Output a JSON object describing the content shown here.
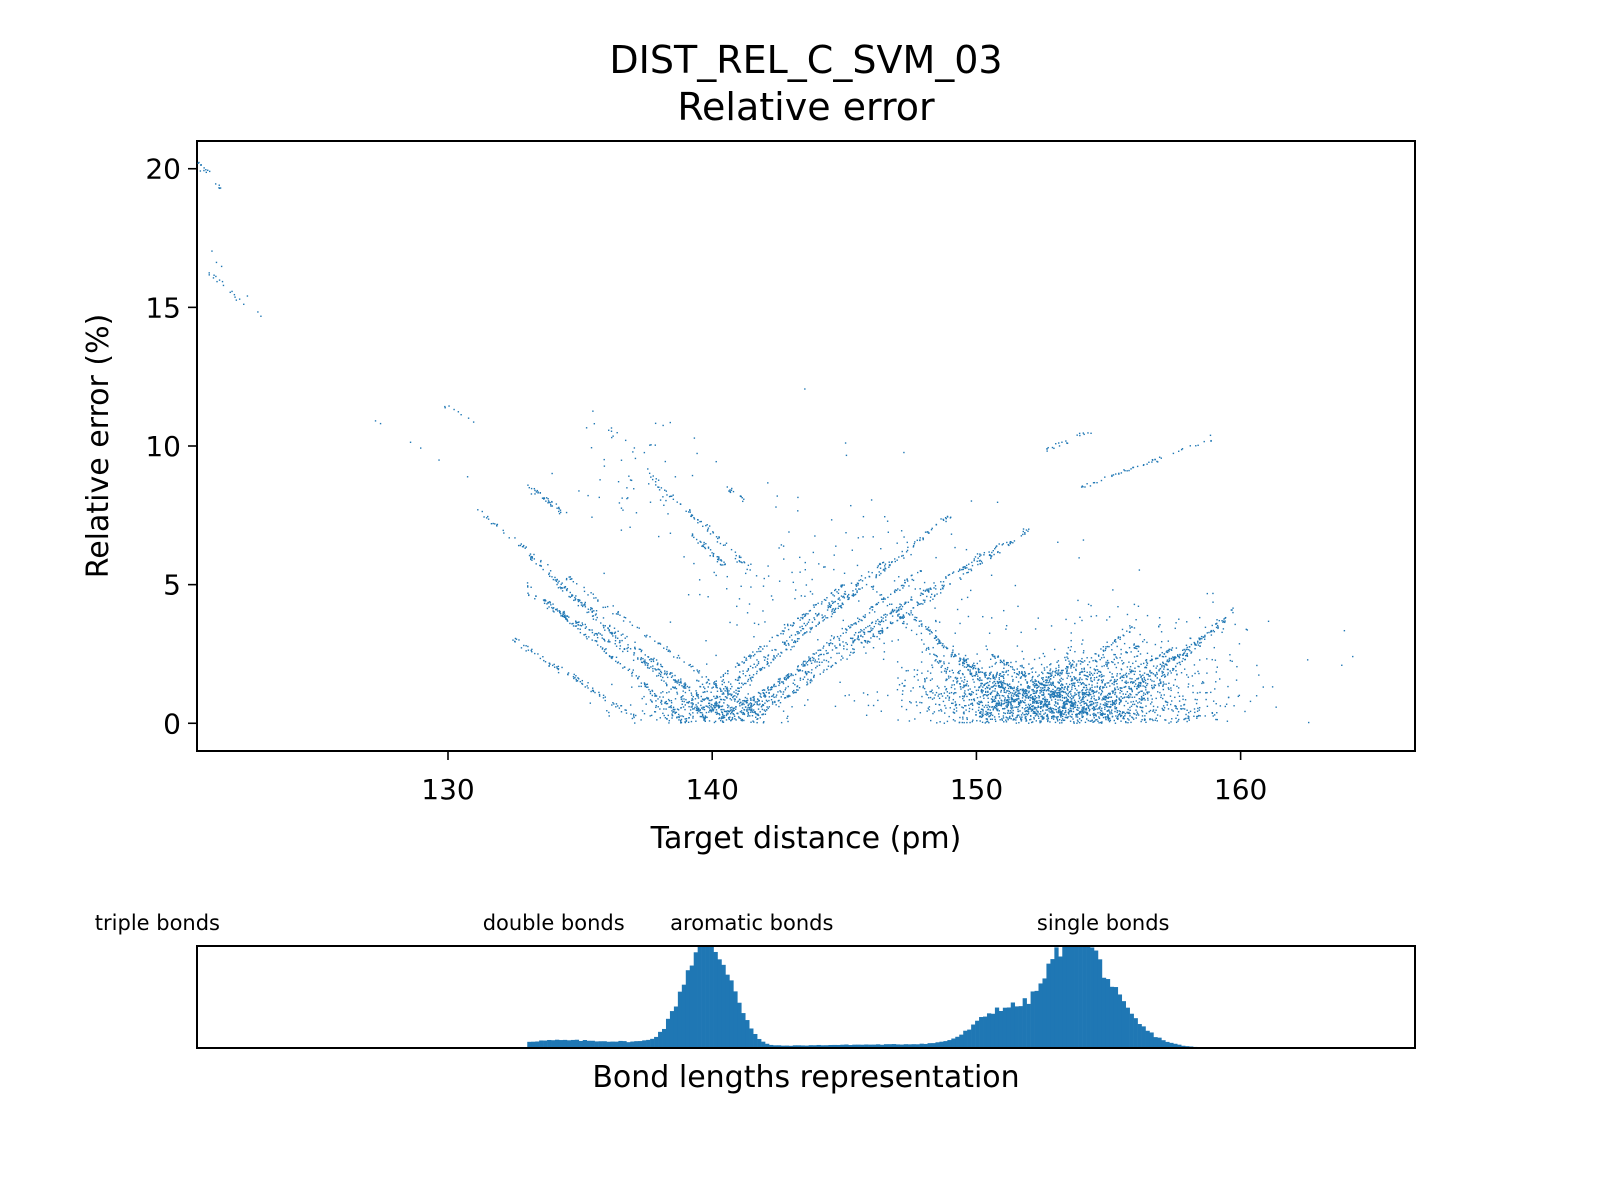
{
  "figure": {
    "title_line1": "DIST_REL_C_SVM_03",
    "title_line2": "Relative error"
  },
  "chart_data": [
    {
      "type": "scatter",
      "title": "DIST_REL_C_SVM_03 Relative error",
      "xlabel": "Target distance (pm)",
      "ylabel": "Relative error (%)",
      "xlim": [
        120.5,
        166.6
      ],
      "ylim": [
        -1.0,
        21.0
      ],
      "xticks": [
        130,
        140,
        150,
        160
      ],
      "yticks": [
        0,
        5,
        10,
        15,
        20
      ],
      "grid": false,
      "color": "#1f77b4",
      "segments": [
        {
          "x": [
            120.5,
            121.4
          ],
          "y": [
            20.3,
            19.3
          ],
          "n": 18
        },
        {
          "x": [
            120.8,
            122.4
          ],
          "y": [
            16.4,
            15.0
          ],
          "n": 16
        },
        {
          "x": [
            120.6,
            123.8
          ],
          "y": [
            17.5,
            13.7
          ],
          "n": 6
        },
        {
          "x": [
            126.0,
            131.0
          ],
          "y": [
            11.6,
            8.8
          ],
          "n": 6
        },
        {
          "x": [
            129.8,
            131.0
          ],
          "y": [
            11.5,
            10.9
          ],
          "n": 8
        },
        {
          "x": [
            133.0,
            134.5
          ],
          "y": [
            8.6,
            7.5
          ],
          "n": 40
        },
        {
          "x": [
            133.0,
            139.8
          ],
          "y": [
            6.1,
            0.1
          ],
          "n": 140
        },
        {
          "x": [
            133.0,
            139.0
          ],
          "y": [
            5.0,
            0.1
          ],
          "n": 140
        },
        {
          "x": [
            133.0,
            141.2
          ],
          "y": [
            4.7,
            0.1
          ],
          "n": 140
        },
        {
          "x": [
            134.0,
            140.5
          ],
          "y": [
            5.2,
            0.1
          ],
          "n": 120
        },
        {
          "x": [
            132.5,
            137.3
          ],
          "y": [
            3.0,
            0.1
          ],
          "n": 90
        },
        {
          "x": [
            134.5,
            142.0
          ],
          "y": [
            5.3,
            0.1
          ],
          "n": 110
        },
        {
          "x": [
            131.0,
            134.0
          ],
          "y": [
            7.8,
            5.5
          ],
          "n": 30
        },
        {
          "x": [
            139.5,
            149.0
          ],
          "y": [
            0.1,
            7.5
          ],
          "n": 200
        },
        {
          "x": [
            140.2,
            151.0
          ],
          "y": [
            0.1,
            6.5
          ],
          "n": 200
        },
        {
          "x": [
            140.8,
            148.0
          ],
          "y": [
            0.1,
            5.6
          ],
          "n": 160
        },
        {
          "x": [
            141.5,
            152.0
          ],
          "y": [
            0.1,
            7.0
          ],
          "n": 180
        },
        {
          "x": [
            139.0,
            146.5
          ],
          "y": [
            0.1,
            5.8
          ],
          "n": 140
        },
        {
          "x": [
            138.2,
            145.0
          ],
          "y": [
            0.1,
            5.0
          ],
          "n": 120
        },
        {
          "x": [
            141.0,
            147.0
          ],
          "y": [
            0.1,
            4.0
          ],
          "n": 90
        },
        {
          "x": [
            137.0,
            141.5
          ],
          "y": [
            9.5,
            5.5
          ],
          "n": 70
        },
        {
          "x": [
            139.0,
            140.5
          ],
          "y": [
            7.0,
            5.7
          ],
          "n": 40
        },
        {
          "x": [
            140.5,
            141.2
          ],
          "y": [
            8.5,
            8.1
          ],
          "n": 14
        },
        {
          "x": [
            146.0,
            150.5
          ],
          "y": [
            5.0,
            0.2
          ],
          "n": 80
        },
        {
          "x": [
            147.5,
            151.5
          ],
          "y": [
            4.0,
            0.2
          ],
          "n": 80
        },
        {
          "x": [
            148.5,
            152.5
          ],
          "y": [
            3.0,
            0.2
          ],
          "n": 90
        },
        {
          "x": [
            149.5,
            153.5
          ],
          "y": [
            2.2,
            0.2
          ],
          "n": 90
        },
        {
          "x": [
            150.5,
            154.5
          ],
          "y": [
            2.5,
            0.2
          ],
          "n": 80
        },
        {
          "x": [
            150.0,
            155.0
          ],
          "y": [
            0.2,
            2.8
          ],
          "n": 100
        },
        {
          "x": [
            151.5,
            156.5
          ],
          "y": [
            0.2,
            3.0
          ],
          "n": 100
        },
        {
          "x": [
            152.5,
            157.5
          ],
          "y": [
            0.2,
            2.7
          ],
          "n": 100
        },
        {
          "x": [
            153.5,
            158.5
          ],
          "y": [
            0.2,
            2.9
          ],
          "n": 100
        },
        {
          "x": [
            154.5,
            159.5
          ],
          "y": [
            0.2,
            3.8
          ],
          "n": 100
        },
        {
          "x": [
            155.5,
            160.0
          ],
          "y": [
            0.2,
            4.3
          ],
          "n": 80
        },
        {
          "x": [
            152.0,
            156.0
          ],
          "y": [
            0.2,
            3.6
          ],
          "n": 60
        },
        {
          "x": [
            154.0,
            159.0
          ],
          "y": [
            8.5,
            10.3
          ],
          "n": 50
        },
        {
          "x": [
            152.5,
            154.5
          ],
          "y": [
            9.8,
            10.6
          ],
          "n": 20
        }
      ],
      "clusters": [
        {
          "cx": 140.0,
          "cy": 0.6,
          "sx": 1.5,
          "sy": 0.5,
          "n": 300
        },
        {
          "cx": 153.5,
          "cy": 0.8,
          "sx": 2.6,
          "sy": 0.7,
          "n": 1300
        },
        {
          "cx": 151.0,
          "cy": 1.2,
          "sx": 1.8,
          "sy": 0.6,
          "n": 400
        },
        {
          "cx": 137.0,
          "cy": 9.0,
          "sx": 1.5,
          "sy": 1.3,
          "n": 60
        },
        {
          "cx": 145.0,
          "cy": 4.5,
          "sx": 3.5,
          "sy": 2.0,
          "n": 200
        },
        {
          "cx": 156.0,
          "cy": 2.5,
          "sx": 2.5,
          "sy": 1.2,
          "n": 200
        }
      ]
    },
    {
      "type": "bar",
      "title": "",
      "xlabel": "Bond lengths representation",
      "ylabel": "",
      "xlim": [
        120.5,
        166.6
      ],
      "color": "#1f77b4",
      "bin_width": 0.15,
      "hist_peaks": [
        {
          "center": 139.6,
          "sigma": 0.75,
          "height": 0.92
        },
        {
          "center": 140.7,
          "sigma": 0.55,
          "height": 0.35
        },
        {
          "center": 153.6,
          "sigma": 1.0,
          "height": 0.9
        },
        {
          "center": 155.0,
          "sigma": 1.2,
          "height": 0.3
        },
        {
          "center": 150.9,
          "sigma": 0.9,
          "height": 0.3
        },
        {
          "center": 152.0,
          "sigma": 2.5,
          "height": 0.07
        },
        {
          "center": 136.5,
          "sigma": 2.6,
          "height": 0.06
        },
        {
          "center": 133.5,
          "sigma": 1.4,
          "height": 0.04
        },
        {
          "center": 145.5,
          "sigma": 3.0,
          "height": 0.03
        }
      ],
      "annotations": [
        {
          "text": "triple bonds",
          "x": 119.0
        },
        {
          "text": "double bonds",
          "x": 134.0
        },
        {
          "text": "aromatic bonds",
          "x": 141.5
        },
        {
          "text": "single bonds",
          "x": 154.8
        }
      ]
    }
  ]
}
